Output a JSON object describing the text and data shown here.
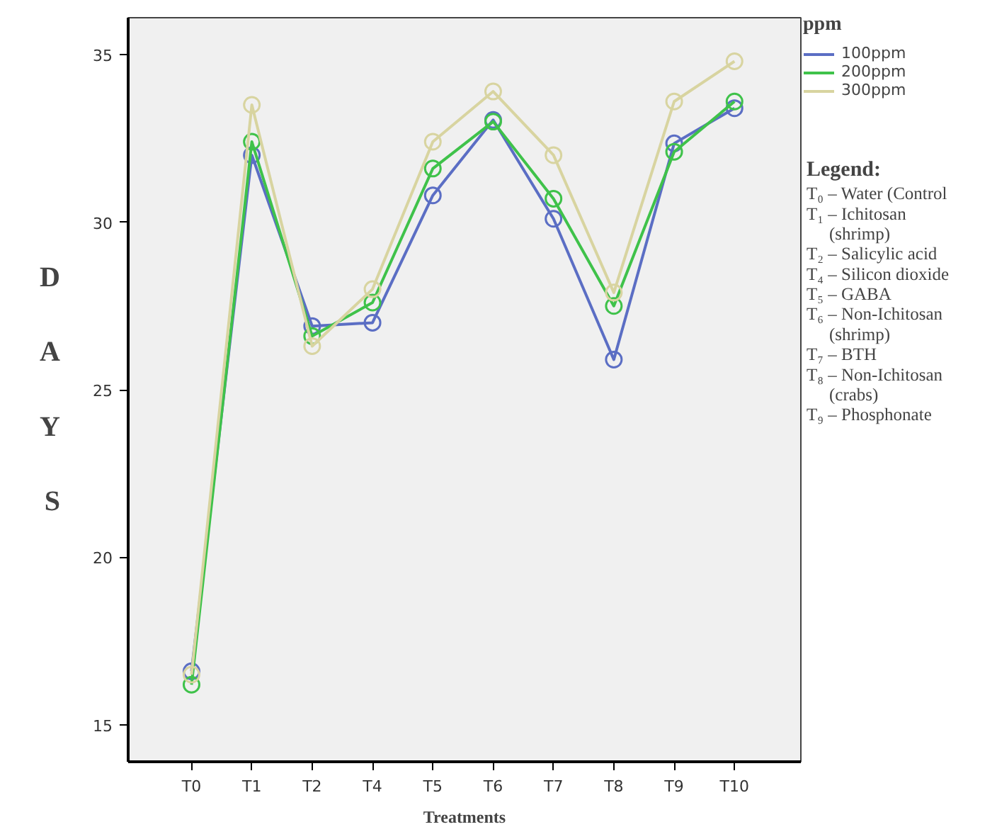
{
  "chart_data": {
    "type": "line",
    "xlabel": "Treatments",
    "ylabel": "DAYS",
    "legend_title": "ppm",
    "categories": [
      "T0",
      "T1",
      "T2",
      "T4",
      "T5",
      "T6",
      "T7",
      "T8",
      "T9",
      "T10"
    ],
    "series": [
      {
        "name": "100ppm",
        "color": "#5b6ec4",
        "values": [
          16.6,
          32.0,
          26.9,
          27.0,
          30.8,
          33.05,
          30.1,
          25.9,
          32.35,
          33.4
        ]
      },
      {
        "name": "200ppm",
        "color": "#3fc24a",
        "values": [
          16.2,
          32.4,
          26.6,
          27.6,
          31.6,
          33.0,
          30.7,
          27.5,
          32.1,
          33.6
        ]
      },
      {
        "name": "300ppm",
        "color": "#d8d4a0",
        "values": [
          16.5,
          33.5,
          26.3,
          28.0,
          32.4,
          33.9,
          32.0,
          27.9,
          33.6,
          34.8
        ]
      }
    ],
    "ylim": [
      13.9,
      36.1
    ],
    "yticks": [
      15,
      20,
      25,
      30,
      35
    ],
    "grid": false,
    "legend": "top right",
    "marker": "circle",
    "line_style": "solid",
    "annotations": [
      "Legend:",
      "T₀ – Water (Control",
      "T₁ – Ichitosan\n(shrimp)",
      "T₂ – Salicylic acid",
      "T₄ – Silicon dioxide",
      "T₅ – GABA",
      "T₆ – Non-Ichitosan\n(shrimp)",
      "T₇ – BTH",
      "T₈ – Non-Ichitosan\n(crabs)",
      "T₉ – Phosphonate"
    ]
  }
}
